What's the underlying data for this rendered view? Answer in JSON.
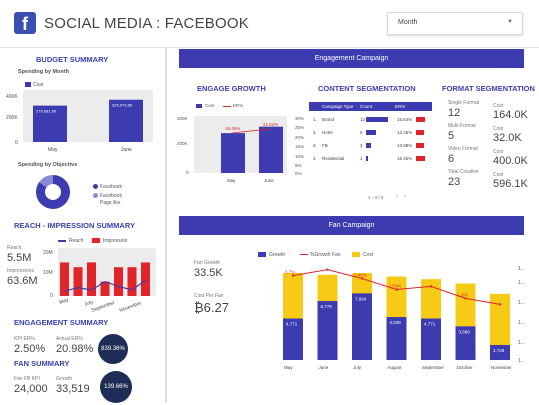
{
  "header": {
    "logo_glyph": "f",
    "title": "SOCIAL MEDIA : FACEBOOK",
    "month_filter": "Month",
    "dropdown_icon": "caret-down-icon"
  },
  "budget": {
    "title": "BUDGET SUMMARY",
    "spending_by_month_title": "Spending by Month",
    "legend_cost": "Cost",
    "y_ticks": [
      "400K",
      "200K",
      "0"
    ],
    "months": [
      "May",
      "June"
    ],
    "values_label": [
      "279,681.6K",
      "325,073.5K"
    ],
    "spending_by_objective_title": "Spending by Objective",
    "objective_legend": [
      "Facebook",
      "Facebook Page like"
    ]
  },
  "reach": {
    "title": "REACH - IMPRESSION SUMMARY",
    "reach_label": "Reach",
    "reach_value": "5.5M",
    "impressions_label": "Impressions",
    "impressions_value": "63.6M",
    "legend": [
      "Reach",
      "Impression"
    ],
    "y_ticks": [
      "20M",
      "10M",
      "0"
    ],
    "x_labels": [
      "May",
      "July",
      "September",
      "November"
    ]
  },
  "engagement_summary": {
    "title": "ENGAGEMENT SUMMARY",
    "kpi1_label": "KPI ER%",
    "kpi1_value": "2.50%",
    "kpi2_label": "Actual ER%",
    "kpi2_value": "20.98%",
    "circle_value": "839.36%"
  },
  "fan_summary": {
    "title": "FAN SUMMARY",
    "kpi1_label": "Fan FB KPI",
    "kpi1_value": "24,000",
    "kpi2_label": "Growth",
    "kpi2_value": "33,519",
    "circle_value": "139.66%"
  },
  "engagement_campaign": {
    "banner": "Engagement Campaign",
    "growth_title": "ENGAGE GROWTH",
    "growth_legend": [
      "Cost",
      "ER%"
    ],
    "growth_y_left": [
      "400K",
      "200K",
      "0"
    ],
    "growth_y_right": [
      "30%",
      "25%",
      "20%",
      "15%",
      "10%",
      "5%",
      "0%"
    ],
    "growth_months": [
      "May",
      "June"
    ],
    "growth_pct_labels": [
      "19.46%",
      "21.52%"
    ],
    "content_title": "CONTENT SEGMENTATION",
    "content_headers": [
      "Campaign Type",
      "Count",
      "ER%"
    ],
    "content_rows": [
      {
        "idx": "1.",
        "type": "Brand",
        "count": "13",
        "er": "15.64%"
      },
      {
        "idx": "2.",
        "type": "Hotel",
        "count": "6",
        "er": "13.45%"
      },
      {
        "idx": "3.",
        "type": "FB",
        "count": "3",
        "er": "13.99%"
      },
      {
        "idx": "4.",
        "type": "Residential",
        "count": "1",
        "er": "15.45%"
      }
    ],
    "content_pager": "1 - 4 / 4",
    "format_title": "FORMAT SEGMENTATION",
    "format_rows": [
      {
        "label": "Single Format",
        "count": "12",
        "cost_label": "Cost",
        "cost": "164.0K"
      },
      {
        "label": "Multi Format",
        "count": "5",
        "cost_label": "Cost",
        "cost": "32.0K"
      },
      {
        "label": "Video Format",
        "count": "6",
        "cost_label": "Cost",
        "cost": "400.0K"
      },
      {
        "label": "Total Creative",
        "count": "23",
        "cost_label": "Cost",
        "cost": "596.1K"
      }
    ]
  },
  "fan_campaign": {
    "banner": "Fan Campaign",
    "fan_growth_label": "Fan Growth",
    "fan_growth_value": "33.5K",
    "cost_per_fan_label": "Cost Per Fan",
    "cost_per_fan_value": "₿6.27",
    "legend": [
      "Growth",
      "%Growth Fan",
      "Cost"
    ],
    "right_axis_label": "1..."
  },
  "chart_data": [
    {
      "type": "bar",
      "title": "Spending by Month",
      "categories": [
        "May",
        "June"
      ],
      "series": [
        {
          "name": "Cost",
          "values": [
            279681.6,
            325073.5
          ]
        }
      ],
      "ylim": [
        0,
        400000
      ],
      "color": "#3d3bb0"
    },
    {
      "type": "pie",
      "title": "Spending by Objective",
      "categories": [
        "Facebook",
        "Facebook Page like"
      ],
      "values": [
        85,
        15
      ],
      "colors": [
        "#3d3bb0",
        "#8b88d8"
      ]
    },
    {
      "type": "line",
      "categories": [
        "May",
        "June",
        "July",
        "August",
        "September",
        "October",
        "November"
      ],
      "series": [
        {
          "name": "Reach",
          "values": [
            2.0,
            3.5,
            2.5,
            6.0,
            4.0,
            2.5,
            6.5
          ]
        },
        {
          "name": "Impression",
          "values": [
            14.0,
            12.0,
            14.0,
            6.0,
            12.0,
            12.0,
            14.0
          ]
        }
      ],
      "ylim": [
        0,
        20
      ],
      "colors": {
        "Reach": "#3d3bb0",
        "Impression": "#e0242a"
      }
    },
    {
      "type": "bar",
      "title": "ENGAGE GROWTH",
      "categories": [
        "May",
        "June"
      ],
      "series": [
        {
          "name": "Cost",
          "values": [
            279681.6,
            325073.5
          ]
        },
        {
          "name": "ER%",
          "values": [
            19.46,
            21.52
          ]
        }
      ],
      "ylim": [
        0,
        400000
      ],
      "y2lim": [
        0,
        30
      ]
    },
    {
      "type": "bar",
      "title": "Fan Campaign",
      "categories": [
        "May",
        "June",
        "July",
        "August",
        "September",
        "October",
        "November"
      ],
      "series": [
        {
          "name": "Growth",
          "values": [
            4771,
            6778,
            7664,
            4939,
            4771,
            3869,
            1728
          ],
          "labels": [
            "4,771",
            "6,778",
            "7,664",
            "4,939",
            "4,771",
            "3,869",
            "1,728"
          ]
        },
        {
          "name": "%Growth Fan",
          "values": [
            3.7,
            4.2,
            3.46,
            2.54,
            2.8,
            1.8,
            1.3
          ],
          "labels": [
            "3.7%",
            "",
            "3.46%",
            "2.54%",
            "",
            "1.8%",
            ""
          ]
        },
        {
          "name": "Cost",
          "values": [
            10000,
            9800,
            10000,
            9600,
            9300,
            8800,
            7600
          ]
        }
      ],
      "colors": {
        "Growth": "#3d3bb0",
        "%Growth Fan": "#e0242a",
        "Cost": "#f7cb15"
      }
    }
  ]
}
